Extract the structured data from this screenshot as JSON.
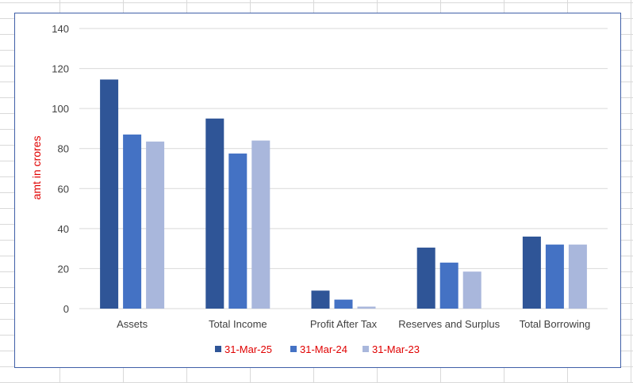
{
  "chart_data": {
    "type": "bar",
    "title": "",
    "xlabel": "",
    "ylabel": "amt in crores",
    "categories": [
      "Assets",
      "Total Income",
      "Profit After Tax",
      "Reserves and Surplus",
      "Total Borrowing"
    ],
    "series": [
      {
        "name": "31-Mar-25",
        "color": "#2f5597",
        "values": [
          114.5,
          95,
          9,
          30.5,
          36
        ]
      },
      {
        "name": "31-Mar-24",
        "color": "#4472c4",
        "values": [
          87,
          77.5,
          4.5,
          23,
          32
        ]
      },
      {
        "name": "31-Mar-23",
        "color": "#a9b7dc",
        "values": [
          83.5,
          84,
          1,
          18.5,
          32
        ]
      }
    ],
    "ylim": [
      0,
      140
    ],
    "yticks": [
      0,
      20,
      40,
      60,
      80,
      100,
      120,
      140
    ],
    "grid": true,
    "legend_position": "bottom"
  }
}
